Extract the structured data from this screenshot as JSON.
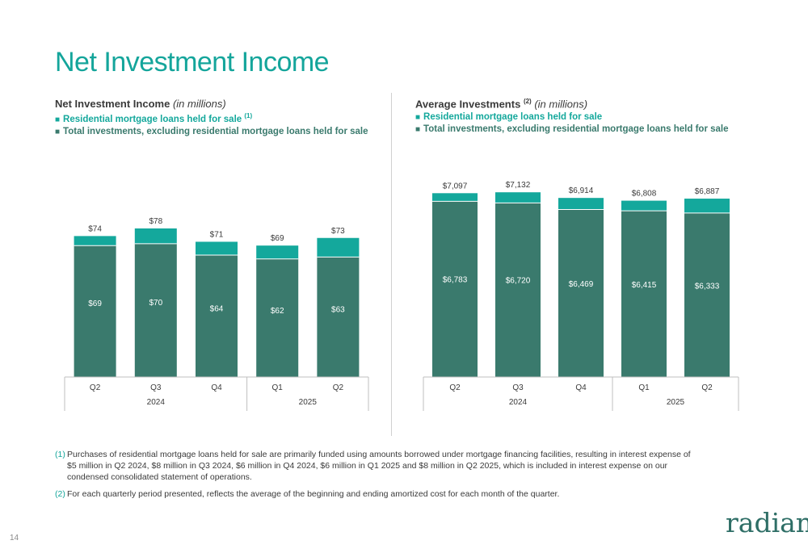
{
  "page": {
    "title": "Net Investment Income",
    "page_number": "14",
    "logo_text": "radian"
  },
  "colors": {
    "title": "#14a59b",
    "series_top": "#14a89c",
    "series_base": "#3a7a6d",
    "footnote_marker": "#14a59b"
  },
  "left_legend": {
    "title": "Net Investment Income",
    "units": "(in millions)",
    "series1_label": "Residential mortgage loans held for sale",
    "series1_sup": "(1)",
    "series2_label": "Total investments, excluding residential mortgage loans held for sale",
    "square": "■"
  },
  "right_legend": {
    "title": "Average Investments",
    "title_sup": "(2)",
    "units": "(in millions)",
    "series1_label": "Residential mortgage loans held for sale",
    "series2_label": "Total investments, excluding residential mortgage loans held for sale",
    "square": "■"
  },
  "chart_data": [
    {
      "type": "bar",
      "stacked": true,
      "categories": [
        "Q2",
        "Q3",
        "Q4",
        "Q1",
        "Q2"
      ],
      "year_groups": [
        {
          "label": "2024",
          "span": 3
        },
        {
          "label": "2025",
          "span": 2
        }
      ],
      "series": [
        {
          "name": "Total investments, excluding residential mortgage loans held for sale",
          "values": [
            69,
            70,
            64,
            62,
            63
          ],
          "labels": [
            "$69",
            "$70",
            "$64",
            "$62",
            "$63"
          ]
        },
        {
          "name": "Residential mortgage loans held for sale",
          "values": [
            5,
            8,
            7,
            7,
            10
          ]
        }
      ],
      "totals": [
        74,
        78,
        71,
        69,
        73
      ],
      "total_labels": [
        "$74",
        "$78",
        "$71",
        "$69",
        "$73"
      ],
      "ylim": [
        0,
        89
      ]
    },
    {
      "type": "bar",
      "stacked": true,
      "categories": [
        "Q2",
        "Q3",
        "Q4",
        "Q1",
        "Q2"
      ],
      "year_groups": [
        {
          "label": "2024",
          "span": 3
        },
        {
          "label": "2025",
          "span": 2
        }
      ],
      "series": [
        {
          "name": "Total investments, excluding residential mortgage loans held for sale",
          "values": [
            6783,
            6720,
            6469,
            6415,
            6333
          ],
          "labels": [
            "$6,783",
            "$6,720",
            "$6,469",
            "$6,415",
            "$6,333"
          ]
        },
        {
          "name": "Residential mortgage loans held for sale",
          "values": [
            314,
            412,
            445,
            393,
            554
          ]
        }
      ],
      "totals": [
        7097,
        7132,
        6914,
        6808,
        6887
      ],
      "total_labels": [
        "$7,097",
        "$7,132",
        "$6,914",
        "$6,808",
        "$6,887"
      ],
      "ylim": [
        0,
        7200
      ]
    }
  ],
  "footnotes": [
    {
      "mark": "(1)",
      "text": "Purchases of residential mortgage loans held for sale are primarily funded using amounts borrowed under mortgage financing facilities, resulting in interest expense of $5 million in Q2 2024, $8 million in Q3 2024, $6 million in Q4 2024, $6 million in Q1 2025 and $8 million in Q2 2025, which is included in interest expense on our condensed consolidated statement of operations."
    },
    {
      "mark": "(2)",
      "text": "For each quarterly period presented, reflects the average of the beginning and ending amortized cost for each month of the quarter."
    }
  ]
}
